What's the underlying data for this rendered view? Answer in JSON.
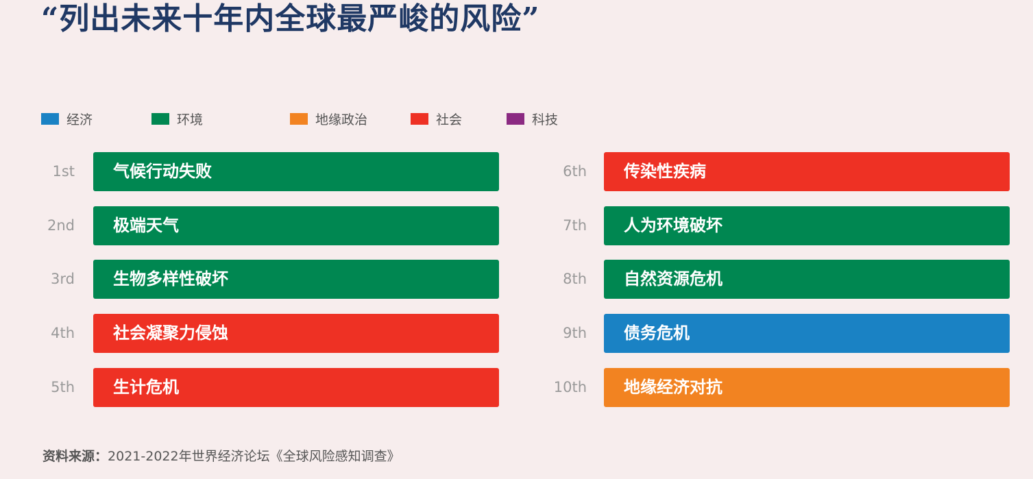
{
  "title": "“列出未来十年内全球最严峻的风险”",
  "source": {
    "label": "资料来源：",
    "text": "2021-2022年世界经济论坛《全球风险感知调查》"
  },
  "chart_data": {
    "type": "table",
    "legend": [
      {
        "key": "economy",
        "label": "经济",
        "color": "#1a82c4"
      },
      {
        "key": "environment",
        "label": "环境",
        "color": "#008751"
      },
      {
        "key": "geopolitics",
        "label": "地缘政治",
        "color": "#f28321"
      },
      {
        "key": "society",
        "label": "社会",
        "color": "#ee3124"
      },
      {
        "key": "technology",
        "label": "科技",
        "color": "#8b2a82"
      }
    ],
    "rows": [
      {
        "rank": "1st",
        "label": "气候行动失败",
        "category": "environment"
      },
      {
        "rank": "2nd",
        "label": "极端天气",
        "category": "environment"
      },
      {
        "rank": "3rd",
        "label": "生物多样性破坏",
        "category": "environment"
      },
      {
        "rank": "4th",
        "label": "社会凝聚力侵蚀",
        "category": "society"
      },
      {
        "rank": "5th",
        "label": "生计危机",
        "category": "society"
      },
      {
        "rank": "6th",
        "label": "传染性疾病",
        "category": "society"
      },
      {
        "rank": "7th",
        "label": "人为环境破坏",
        "category": "environment"
      },
      {
        "rank": "8th",
        "label": "自然资源危机",
        "category": "environment"
      },
      {
        "rank": "9th",
        "label": "债务危机",
        "category": "economy"
      },
      {
        "rank": "10th",
        "label": "地缘经济对抗",
        "category": "geopolitics"
      }
    ]
  }
}
